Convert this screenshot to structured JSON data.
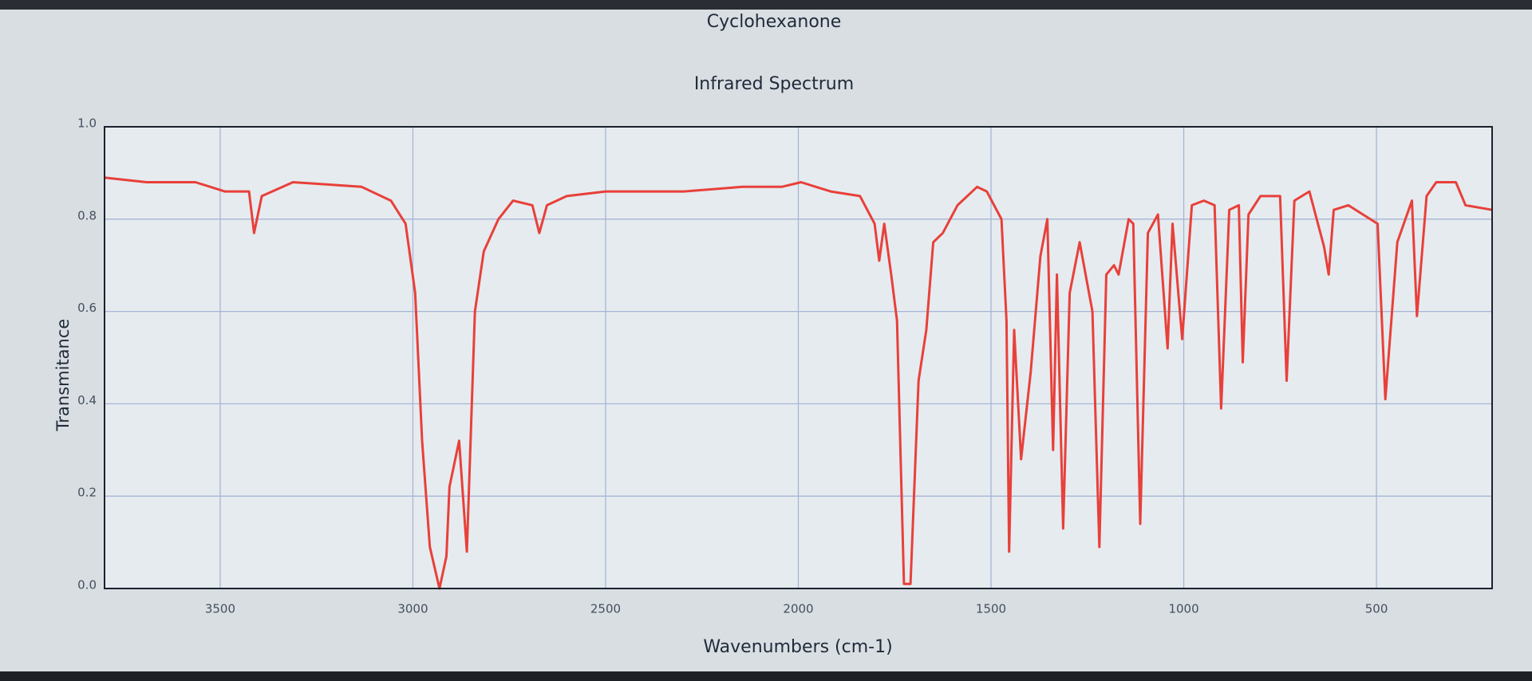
{
  "chart_data": {
    "type": "line",
    "title": "Cyclohexanone",
    "subtitle": "Infrared Spectrum",
    "x_label": "Wavenumbers (cm-1)",
    "y_label": "Transmitance",
    "color": "#e8403a",
    "grid": true,
    "xlim": [
      3800,
      200
    ],
    "ylim": [
      0,
      1
    ],
    "xticks": [
      3500,
      3000,
      2500,
      2000,
      1500,
      1000,
      500
    ],
    "yticks": [
      {
        "value": 0,
        "label": "0.0"
      },
      0.2,
      0.4,
      0.6,
      0.8,
      {
        "value": 1,
        "label": "1.0"
      }
    ],
    "x": [
      3800,
      3691,
      3564,
      3488,
      3425,
      3412,
      3392,
      3311,
      3133,
      3057,
      3019,
      2994,
      2976,
      2956,
      2931,
      2913,
      2905,
      2880,
      2860,
      2839,
      2816,
      2778,
      2740,
      2690,
      2672,
      2652,
      2601,
      2500,
      2297,
      2145,
      2043,
      1993,
      1916,
      1840,
      1802,
      1790,
      1777,
      1759,
      1744,
      1726,
      1709,
      1688,
      1668,
      1650,
      1625,
      1587,
      1536,
      1511,
      1473,
      1460,
      1453,
      1440,
      1422,
      1397,
      1372,
      1354,
      1339,
      1329,
      1313,
      1296,
      1270,
      1237,
      1219,
      1201,
      1181,
      1169,
      1143,
      1131,
      1113,
      1093,
      1067,
      1042,
      1029,
      1004,
      979,
      948,
      920,
      903,
      882,
      857,
      847,
      832,
      801,
      750,
      733,
      713,
      674,
      636,
      624,
      611,
      573,
      497,
      477,
      446,
      408,
      395,
      370,
      345,
      294,
      269,
      200
    ],
    "values": [
      0.89,
      0.88,
      0.88,
      0.86,
      0.86,
      0.77,
      0.85,
      0.88,
      0.87,
      0.84,
      0.79,
      0.64,
      0.32,
      0.09,
      0,
      0.07,
      0.22,
      0.32,
      0.08,
      0.6,
      0.73,
      0.8,
      0.84,
      0.83,
      0.77,
      0.83,
      0.85,
      0.86,
      0.86,
      0.87,
      0.87,
      0.88,
      0.86,
      0.85,
      0.79,
      0.71,
      0.79,
      0.68,
      0.58,
      0.01,
      0.01,
      0.45,
      0.56,
      0.75,
      0.77,
      0.83,
      0.87,
      0.86,
      0.8,
      0.58,
      0.08,
      0.56,
      0.28,
      0.47,
      0.72,
      0.8,
      0.3,
      0.68,
      0.13,
      0.64,
      0.75,
      0.6,
      0.09,
      0.68,
      0.7,
      0.68,
      0.8,
      0.79,
      0.14,
      0.77,
      0.81,
      0.52,
      0.79,
      0.54,
      0.83,
      0.84,
      0.83,
      0.39,
      0.82,
      0.83,
      0.49,
      0.81,
      0.85,
      0.85,
      0.45,
      0.84,
      0.86,
      0.74,
      0.68,
      0.82,
      0.83,
      0.79,
      0.41,
      0.75,
      0.84,
      0.59,
      0.85,
      0.88,
      0.88,
      0.83,
      0.82
    ]
  }
}
